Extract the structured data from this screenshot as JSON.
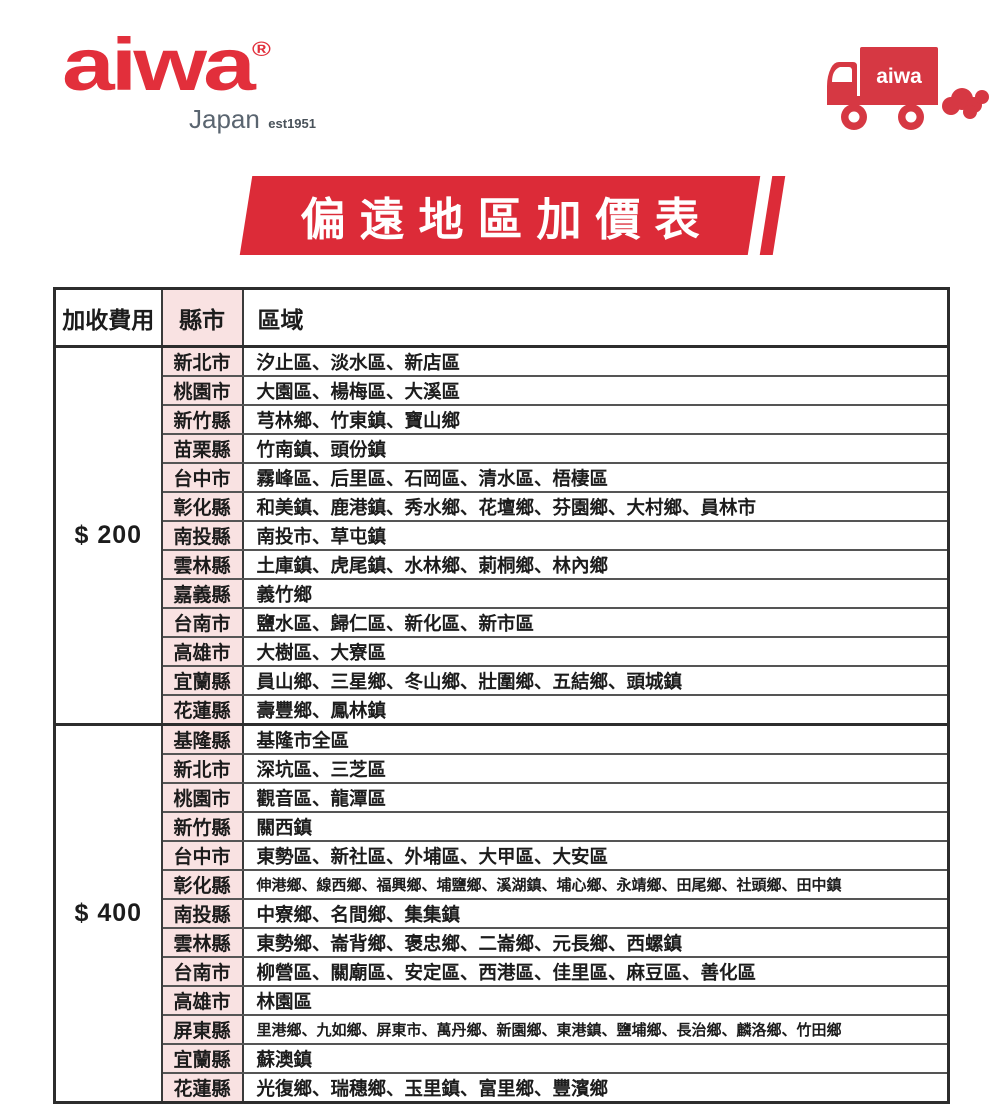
{
  "brand": {
    "logo_text": "aiwa",
    "registered_mark": "®",
    "sub_text": "Japan",
    "est_text": "est1951",
    "logo_color": "#e22f3b",
    "truck_label": "aiwa",
    "truck_color": "#d63843"
  },
  "banner": {
    "title": "偏遠地區加價表",
    "bg_color": "#dc2b38",
    "text_color": "#ffffff"
  },
  "table": {
    "headers": [
      "加收費用",
      "縣市",
      "區域"
    ],
    "county_col_bg": "#f9e2e2",
    "groups": [
      {
        "fee": "$ 200",
        "rows": [
          {
            "county": "新北市",
            "regions": "汐止區、淡水區、新店區"
          },
          {
            "county": "桃園市",
            "regions": "大園區、楊梅區、大溪區"
          },
          {
            "county": "新竹縣",
            "regions": "芎林鄉、竹東鎮、寶山鄉"
          },
          {
            "county": "苗栗縣",
            "regions": "竹南鎮、頭份鎮"
          },
          {
            "county": "台中市",
            "regions": "霧峰區、后里區、石岡區、清水區、梧棲區"
          },
          {
            "county": "彰化縣",
            "regions": "和美鎮、鹿港鎮、秀水鄉、花壇鄉、芬園鄉、大村鄉、員林市"
          },
          {
            "county": "南投縣",
            "regions": "南投市、草屯鎮"
          },
          {
            "county": "雲林縣",
            "regions": "土庫鎮、虎尾鎮、水林鄉、莿桐鄉、林內鄉"
          },
          {
            "county": "嘉義縣",
            "regions": "義竹鄉"
          },
          {
            "county": "台南市",
            "regions": "鹽水區、歸仁區、新化區、新市區"
          },
          {
            "county": "高雄市",
            "regions": "大樹區、大寮區"
          },
          {
            "county": "宜蘭縣",
            "regions": "員山鄉、三星鄉、冬山鄉、壯圍鄉、五結鄉、頭城鎮"
          },
          {
            "county": "花蓮縣",
            "regions": "壽豐鄉、鳳林鎮"
          }
        ]
      },
      {
        "fee": "$ 400",
        "rows": [
          {
            "county": "基隆縣",
            "regions": "基隆市全區"
          },
          {
            "county": "新北市",
            "regions": "深坑區、三芝區"
          },
          {
            "county": "桃園市",
            "regions": "觀音區、龍潭區"
          },
          {
            "county": "新竹縣",
            "regions": "關西鎮"
          },
          {
            "county": "台中市",
            "regions": "東勢區、新社區、外埔區、大甲區、大安區"
          },
          {
            "county": "彰化縣",
            "regions": "伸港鄉、線西鄉、福興鄉、埔鹽鄉、溪湖鎮、埔心鄉、永靖鄉、田尾鄉、社頭鄉、田中鎮"
          },
          {
            "county": "南投縣",
            "regions": "中寮鄉、名間鄉、集集鎮"
          },
          {
            "county": "雲林縣",
            "regions": "東勢鄉、崙背鄉、褒忠鄉、二崙鄉、元長鄉、西螺鎮"
          },
          {
            "county": "台南市",
            "regions": "柳營區、關廟區、安定區、西港區、佳里區、麻豆區、善化區"
          },
          {
            "county": "高雄市",
            "regions": "林園區"
          },
          {
            "county": "屏東縣",
            "regions": "里港鄉、九如鄉、屏東市、萬丹鄉、新園鄉、東港鎮、鹽埔鄉、長治鄉、麟洛鄉、竹田鄉"
          },
          {
            "county": "宜蘭縣",
            "regions": "蘇澳鎮"
          },
          {
            "county": "花蓮縣",
            "regions": "光復鄉、瑞穗鄉、玉里鎮、富里鄉、豐濱鄉"
          }
        ]
      }
    ]
  }
}
